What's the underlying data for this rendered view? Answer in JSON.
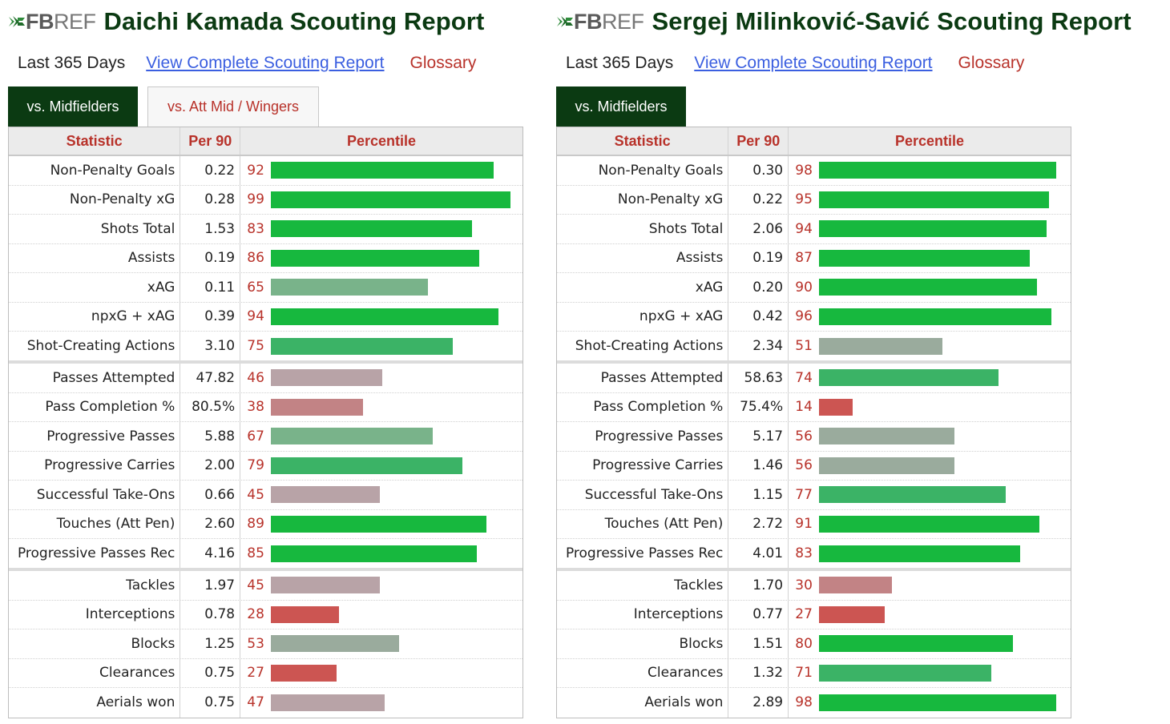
{
  "colors": {
    "brand_dark_green": "#0b3a12",
    "label_red": "#b8322a",
    "link_blue": "#3b5fe0",
    "bar_high": "#17b83e",
    "bar_mid_high": "#3bb366",
    "bar_mid": "#9aab9d",
    "bar_mid_low": "#b8a3a7",
    "bar_low": "#cc5552"
  },
  "logo": {
    "fb": "FB",
    "ref": "REF",
    "icon": "fbref-logo-icon"
  },
  "panels": [
    {
      "title": "Daichi Kamada Scouting Report",
      "period": "Last 365 Days",
      "link": "View Complete Scouting Report",
      "glossary": "Glossary",
      "tabs": [
        {
          "label": "vs. Midfielders",
          "active": true
        },
        {
          "label": "vs. Att Mid / Wingers",
          "active": false
        }
      ],
      "headers": {
        "stat": "Statistic",
        "per90": "Per 90",
        "pct": "Percentile"
      },
      "rows": [
        {
          "stat": "Non-Penalty Goals",
          "per90": "0.22",
          "pct": 92
        },
        {
          "stat": "Non-Penalty xG",
          "per90": "0.28",
          "pct": 99
        },
        {
          "stat": "Shots Total",
          "per90": "1.53",
          "pct": 83
        },
        {
          "stat": "Assists",
          "per90": "0.19",
          "pct": 86
        },
        {
          "stat": "xAG",
          "per90": "0.11",
          "pct": 65
        },
        {
          "stat": "npxG + xAG",
          "per90": "0.39",
          "pct": 94
        },
        {
          "stat": "Shot-Creating Actions",
          "per90": "3.10",
          "pct": 75
        },
        {
          "stat": "Passes Attempted",
          "per90": "47.82",
          "pct": 46
        },
        {
          "stat": "Pass Completion %",
          "per90": "80.5%",
          "pct": 38
        },
        {
          "stat": "Progressive Passes",
          "per90": "5.88",
          "pct": 67
        },
        {
          "stat": "Progressive Carries",
          "per90": "2.00",
          "pct": 79
        },
        {
          "stat": "Successful Take-Ons",
          "per90": "0.66",
          "pct": 45
        },
        {
          "stat": "Touches (Att Pen)",
          "per90": "2.60",
          "pct": 89
        },
        {
          "stat": "Progressive Passes Rec",
          "per90": "4.16",
          "pct": 85
        },
        {
          "stat": "Tackles",
          "per90": "1.97",
          "pct": 45
        },
        {
          "stat": "Interceptions",
          "per90": "0.78",
          "pct": 28
        },
        {
          "stat": "Blocks",
          "per90": "1.25",
          "pct": 53
        },
        {
          "stat": "Clearances",
          "per90": "0.75",
          "pct": 27
        },
        {
          "stat": "Aerials won",
          "per90": "0.75",
          "pct": 47
        }
      ]
    },
    {
      "title": "Sergej Milinković-Savić Scouting Report",
      "period": "Last 365 Days",
      "link": "View Complete Scouting Report",
      "glossary": "Glossary",
      "tabs": [
        {
          "label": "vs. Midfielders",
          "active": true
        }
      ],
      "headers": {
        "stat": "Statistic",
        "per90": "Per 90",
        "pct": "Percentile"
      },
      "rows": [
        {
          "stat": "Non-Penalty Goals",
          "per90": "0.30",
          "pct": 98
        },
        {
          "stat": "Non-Penalty xG",
          "per90": "0.22",
          "pct": 95
        },
        {
          "stat": "Shots Total",
          "per90": "2.06",
          "pct": 94
        },
        {
          "stat": "Assists",
          "per90": "0.19",
          "pct": 87
        },
        {
          "stat": "xAG",
          "per90": "0.20",
          "pct": 90
        },
        {
          "stat": "npxG + xAG",
          "per90": "0.42",
          "pct": 96
        },
        {
          "stat": "Shot-Creating Actions",
          "per90": "2.34",
          "pct": 51
        },
        {
          "stat": "Passes Attempted",
          "per90": "58.63",
          "pct": 74
        },
        {
          "stat": "Pass Completion %",
          "per90": "75.4%",
          "pct": 14
        },
        {
          "stat": "Progressive Passes",
          "per90": "5.17",
          "pct": 56
        },
        {
          "stat": "Progressive Carries",
          "per90": "1.46",
          "pct": 56
        },
        {
          "stat": "Successful Take-Ons",
          "per90": "1.15",
          "pct": 77
        },
        {
          "stat": "Touches (Att Pen)",
          "per90": "2.72",
          "pct": 91
        },
        {
          "stat": "Progressive Passes Rec",
          "per90": "4.01",
          "pct": 83
        },
        {
          "stat": "Tackles",
          "per90": "1.70",
          "pct": 30
        },
        {
          "stat": "Interceptions",
          "per90": "0.77",
          "pct": 27
        },
        {
          "stat": "Blocks",
          "per90": "1.51",
          "pct": 80
        },
        {
          "stat": "Clearances",
          "per90": "1.32",
          "pct": 71
        },
        {
          "stat": "Aerials won",
          "per90": "2.89",
          "pct": 98
        }
      ]
    }
  ]
}
